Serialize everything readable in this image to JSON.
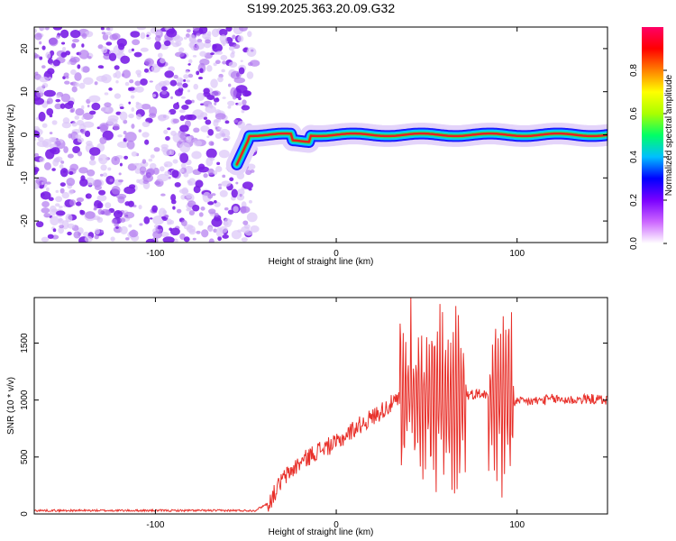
{
  "title": "S199.2025.363.20.09.G32",
  "colors": {
    "snr_line": "#e8302a",
    "track_core": "#e82020",
    "noise": "#7a2be0"
  },
  "chart_data": [
    {
      "type": "heatmap",
      "name": "spectrogram",
      "xlabel": "Height of straight line (km)",
      "ylabel": "Frequency (Hz)",
      "xlim": [
        -167,
        150
      ],
      "ylim": [
        -25,
        25
      ],
      "xticks": [
        -100,
        0,
        100
      ],
      "yticks": [
        -20,
        -10,
        0,
        10,
        20
      ],
      "noise_region_x": [
        -167,
        -48
      ],
      "signal_region_x": [
        -48,
        150
      ],
      "signal_frequency_hz": 0
    },
    {
      "type": "colorbar",
      "name": "colorbar",
      "label": "Normalized spectral amplitude",
      "range": [
        0,
        1
      ],
      "ticks": [
        "0.0",
        "0.2",
        "0.4",
        "0.6",
        "0.8"
      ],
      "stops": [
        "#ffffff",
        "#cc66ff",
        "#7a00ff",
        "#0000ff",
        "#00bfff",
        "#00ff66",
        "#aaff00",
        "#ffff00",
        "#ff8000",
        "#ff0000",
        "#ff0066"
      ]
    },
    {
      "type": "line",
      "name": "snr",
      "xlabel": "Height of straight line (km)",
      "ylabel": "SNR (10 * v/v)",
      "xlim": [
        -167,
        150
      ],
      "ylim": [
        0,
        1900
      ],
      "xticks": [
        -100,
        0,
        100
      ],
      "yticks": [
        0,
        500,
        1000,
        1500
      ],
      "series": [
        {
          "name": "SNR",
          "x": [
            -167,
            -120,
            -80,
            -45,
            -37,
            -30,
            -20,
            -10,
            0,
            10,
            20,
            30,
            35,
            40,
            50,
            60,
            70,
            80,
            90,
            100,
            110,
            120,
            130,
            140,
            150
          ],
          "values": [
            30,
            30,
            30,
            30,
            100,
            300,
            450,
            560,
            620,
            750,
            850,
            960,
            1000,
            1060,
            1040,
            980,
            1040,
            1060,
            1000,
            980,
            990,
            1010,
            1000,
            1010,
            1000
          ]
        }
      ]
    }
  ]
}
